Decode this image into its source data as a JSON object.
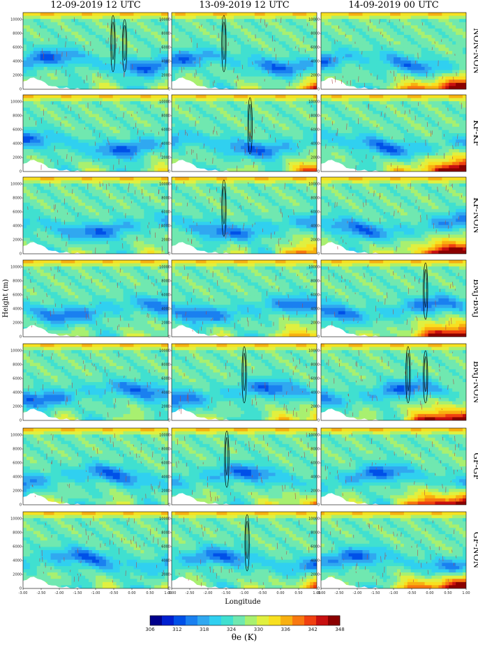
{
  "chart_data": {
    "type": "heatmap",
    "variable": "θe (K)",
    "columns": [
      "12-09-2019 12 UTC",
      "13-09-2019 12 UTC",
      "14-09-2019 00 UTC"
    ],
    "rows": [
      "NON-NON",
      "KF-KF",
      "KF-NON",
      "BMJ-BMJ",
      "BMJ-NON",
      "GF-GF",
      "GF-NON"
    ],
    "xlabel": "Longitude",
    "ylabel": "Height (m)",
    "xlim": [
      -3.0,
      1.0
    ],
    "ylim": [
      0,
      11000
    ],
    "x_ticks": [
      "-3.00",
      "-2.50",
      "-2.00",
      "-1.50",
      "-1.00",
      "-0.50",
      "0.00",
      "0.50",
      "1.00"
    ],
    "y_ticks": [
      "2000",
      "4000",
      "6000",
      "8000",
      "10000"
    ],
    "colorbar": {
      "min": 306,
      "max": 348,
      "step": 3,
      "tick_labels": [
        "306",
        "312",
        "318",
        "324",
        "330",
        "336",
        "342",
        "348"
      ],
      "colors": [
        "#00008b",
        "#0020d0",
        "#0050e8",
        "#1a80f0",
        "#30a8f0",
        "#30d0f0",
        "#40e0d0",
        "#70e8b0",
        "#a8f070",
        "#e0f040",
        "#f8e020",
        "#f8b010",
        "#f87810",
        "#f04010",
        "#c81010",
        "#8b0000"
      ]
    },
    "colors": {
      "background_mid": "#6ee8b8",
      "terrain": "#ffffff",
      "contour": "#000000",
      "vectors": "#b04848"
    }
  }
}
